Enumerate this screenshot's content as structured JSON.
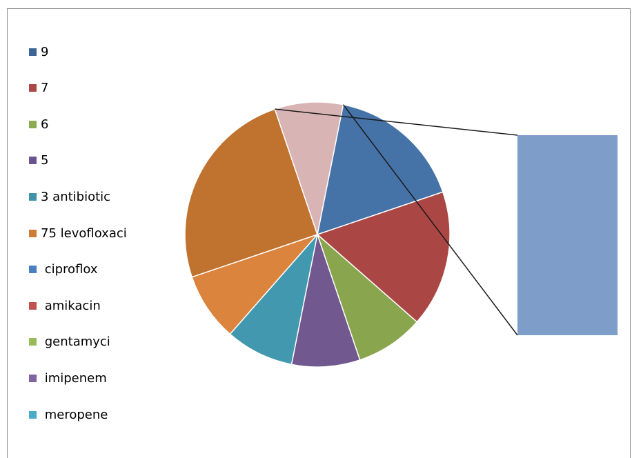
{
  "chart_data": {
    "type": "pie",
    "subtype": "pie-of-pie",
    "title": "",
    "legend_position": "left",
    "slices": [
      {
        "label": "9",
        "value": 16.67,
        "color": "#4572a7"
      },
      {
        "label": "7",
        "value": 16.67,
        "color": "#aa4643"
      },
      {
        "label": "6",
        "value": 8.33,
        "color": "#89a54e"
      },
      {
        "label": "5",
        "value": 8.33,
        "color": "#71588f"
      },
      {
        "label": "3 antibiotic",
        "value": 8.33,
        "color": "#4198af"
      },
      {
        "label": "75 levofloxaci",
        "value": 8.33,
        "color": "#db843d"
      },
      {
        "label": " ciproflox",
        "value": 25.0,
        "color": "#c0722f"
      },
      {
        "label": " amikacin",
        "value": 8.33,
        "color": "#d9b4b4"
      }
    ],
    "legend": [
      {
        "label": "9",
        "color": "#3d6496"
      },
      {
        "label": "7",
        "color": "#ab4744"
      },
      {
        "label": "6",
        "color": "#8aab4f"
      },
      {
        "label": "5",
        "color": "#6a5290"
      },
      {
        "label": "3 antibiotic",
        "color": "#3f92a8"
      },
      {
        "label": "75 levofloxaci",
        "color": "#d07b34"
      },
      {
        "label": " ciproflox",
        "color": "#4a7fc1"
      },
      {
        "label": " amikacin",
        "color": "#c2504d"
      },
      {
        "label": " gentamyci",
        "color": "#9bbb59"
      },
      {
        "label": " imipenem",
        "color": "#8064a2"
      },
      {
        "label": " meropene",
        "color": "#4bacc6"
      }
    ],
    "secondary_bar": {
      "color": "#7f9dc9",
      "value": 0
    }
  }
}
